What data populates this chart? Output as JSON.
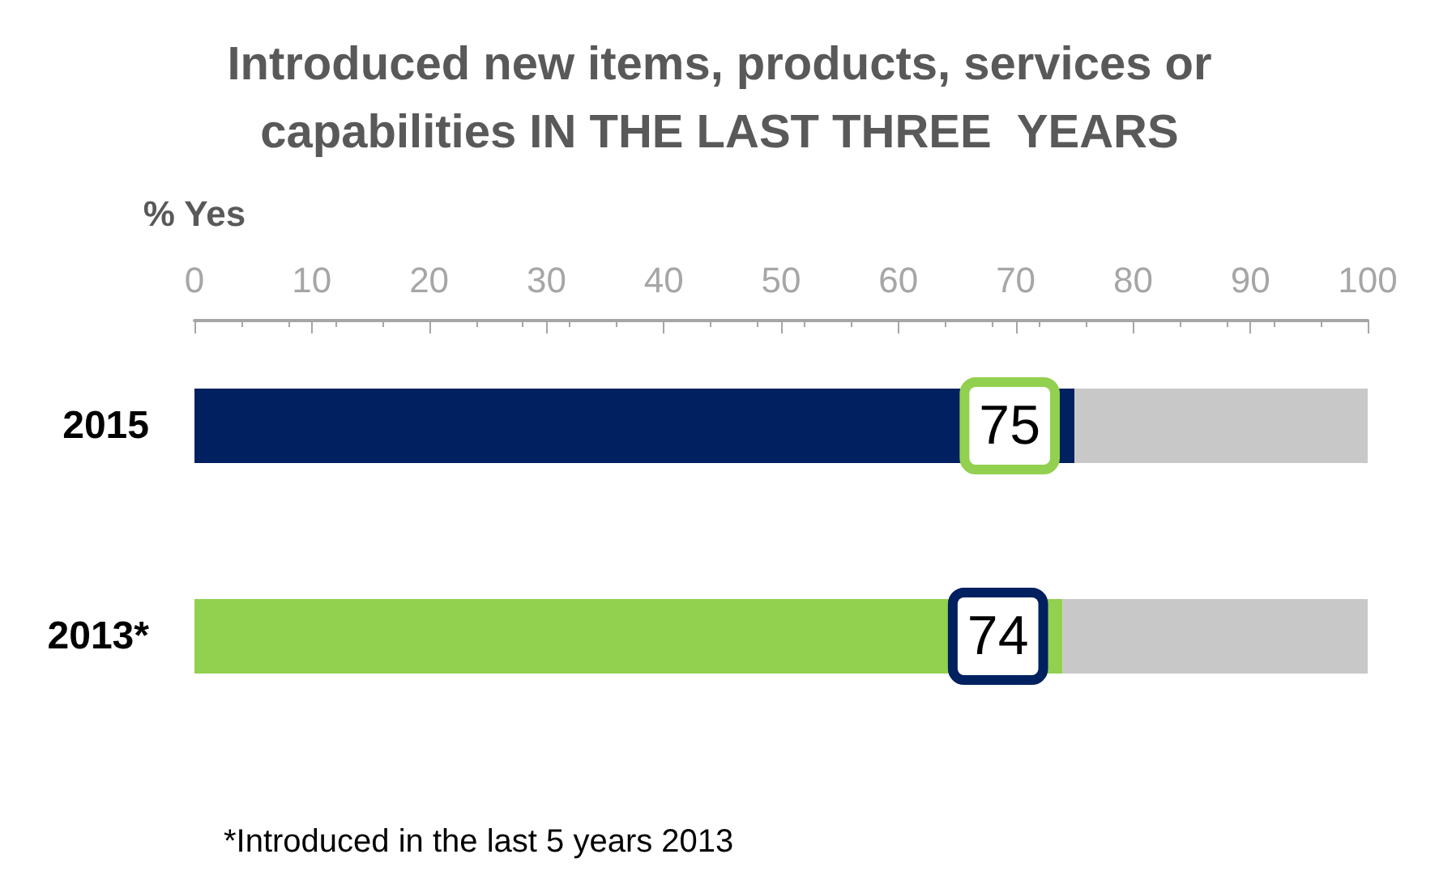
{
  "chart_data": {
    "type": "bar",
    "orientation": "horizontal",
    "stacked": true,
    "title": "Introduced new items, products, services or\ncapabilities IN THE LAST THREE  YEARS",
    "xlabel": "% Yes",
    "categories": [
      "2015",
      "2013*"
    ],
    "series": [
      {
        "colors": [
          "#002060",
          "#92d050"
        ],
        "values": [
          75,
          74
        ],
        "value_labels": [
          "75",
          "74"
        ]
      },
      {
        "color": "#c8c8c8",
        "values": [
          25,
          26
        ]
      }
    ],
    "xlim": [
      0,
      100
    ],
    "xticks": [
      0,
      10,
      20,
      30,
      40,
      50,
      60,
      70,
      80,
      90,
      100
    ],
    "grid": false,
    "annotations": [
      "*Introduced in the last 5 years 2013"
    ]
  }
}
